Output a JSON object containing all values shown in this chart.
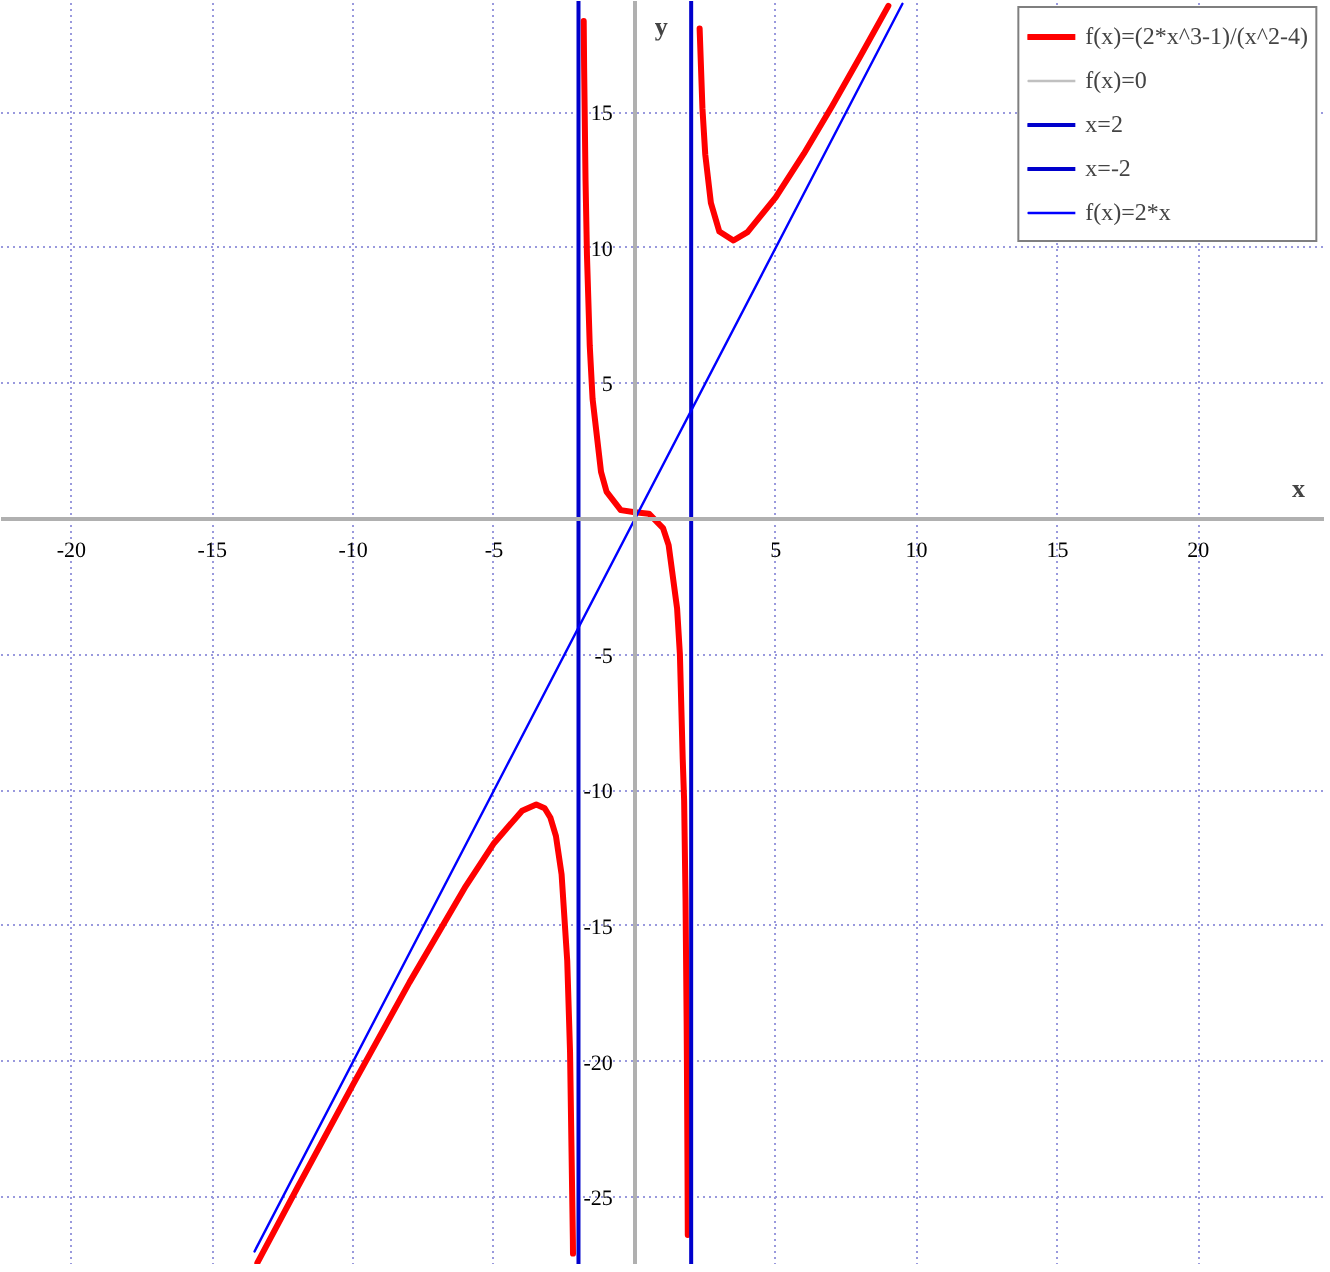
{
  "chart_data": {
    "type": "line",
    "xlabel": "x",
    "ylabel": "y",
    "xlim": [
      -22.5,
      24.5
    ],
    "ylim": [
      -27.5,
      19.1
    ],
    "xticks": [
      -20,
      -15,
      -10,
      -5,
      5,
      10,
      15,
      20
    ],
    "yticks": [
      -25,
      -20,
      -15,
      -10,
      -5,
      5,
      10,
      15
    ],
    "grid": true,
    "legend": "top right",
    "marker": "none",
    "line_style": "solid",
    "series": [
      {
        "name": "f(x)=(2*x^3-1)/(x^2-4)",
        "color": "#ff0000",
        "x": [
          -13.4,
          -12,
          -10,
          -8,
          -6,
          -5,
          -4,
          -3.5,
          -3.2,
          -3,
          -2.8,
          -2.6,
          -2.4,
          -2.3,
          -2.2,
          -2.195,
          null,
          -1.815,
          -1.8,
          -1.75,
          -1.7,
          -1.6,
          -1.5,
          -1.2,
          -1,
          -0.5,
          0,
          0.5,
          1,
          1.2,
          1.5,
          1.6,
          1.7,
          1.75,
          1.8,
          1.84,
          1.85,
          1.87,
          1.88,
          null,
          2.3,
          2.4,
          2.5,
          2.7,
          3,
          3.5,
          4,
          5,
          6,
          7,
          8,
          9
        ],
        "values": [
          -27.42,
          -24.69,
          -20.84,
          -17.08,
          -13.53,
          -11.95,
          -10.75,
          -10.52,
          -10.66,
          -11,
          -11.69,
          -13.1,
          -16.28,
          -19.64,
          -26.54,
          -27.08,
          null,
          18.36,
          16.66,
          12.5,
          9.75,
          6.38,
          4.43,
          1.74,
          1,
          0.33,
          0.25,
          0.2,
          -0.33,
          -0.96,
          -3.29,
          -4.99,
          -8.85,
          -10.37,
          -14.03,
          -18.65,
          -20.2,
          -24.01,
          -26.39,
          null,
          18.09,
          15.14,
          13.44,
          11.66,
          10.6,
          10.27,
          10.58,
          11.86,
          13.47,
          15.22,
          17.05,
          18.92
        ]
      },
      {
        "name": "f(x)=0",
        "color": "#c0c0c0",
        "x": [
          -22.5,
          24.5
        ],
        "values": [
          0,
          0
        ]
      },
      {
        "name": "x=2",
        "color": "#0000cc",
        "x": [
          2,
          2
        ],
        "values": [
          -27.5,
          19.1
        ]
      },
      {
        "name": "x=-2",
        "color": "#0000cc",
        "x": [
          -2,
          -2
        ],
        "values": [
          -27.5,
          19.1
        ]
      },
      {
        "name": "f(x)=2*x",
        "color": "#0000ff",
        "x": [
          -13.5,
          9.5
        ],
        "values": [
          -27,
          19
        ]
      }
    ]
  }
}
